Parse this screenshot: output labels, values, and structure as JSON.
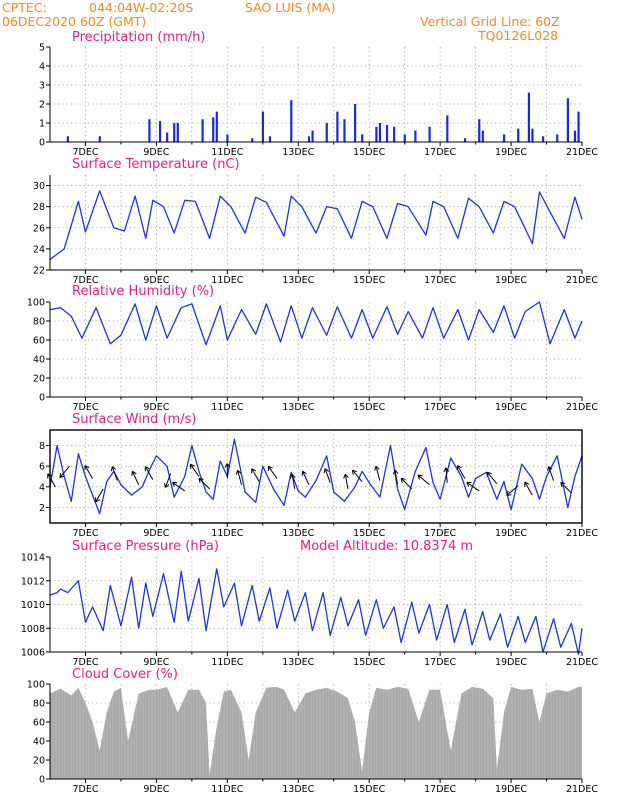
{
  "header": {
    "source": "CPTEC:",
    "location_coords": "044:04W-02:20S",
    "location_name": "SAO LUIS (MA)",
    "datetime": "06DEC2020 60Z (GMT)",
    "grid_line_label": "Vertical Grid Line: 60Z",
    "product_code": "TQ0126L028"
  },
  "colors": {
    "header_text": "#f08a28",
    "panel_title": "#e0208c",
    "series_line": "#2233dd",
    "bars": "#1a2bd6",
    "cloud_fill": "#a8a8a8",
    "grid": "#9a9a9a"
  },
  "x_axis_ticks": [
    "7DEC",
    "9DEC",
    "11DEC",
    "13DEC",
    "15DEC",
    "17DEC",
    "19DEC",
    "21DEC"
  ],
  "chart_data": [
    {
      "id": "precip",
      "type": "bar",
      "title": "Precipitation (mm/h)",
      "ylim": [
        0,
        5
      ],
      "yticks": [
        "0",
        "1",
        "2",
        "3",
        "4",
        "5"
      ],
      "grid": true,
      "x": [
        6.5,
        7.4,
        8.8,
        9.1,
        9.3,
        9.5,
        9.6,
        10.3,
        10.6,
        10.7,
        11.0,
        11.7,
        12.0,
        12.2,
        12.8,
        13.3,
        13.4,
        13.8,
        14.1,
        14.3,
        14.6,
        14.8,
        15.2,
        15.3,
        15.5,
        15.7,
        16.0,
        16.3,
        16.7,
        17.2,
        17.7,
        18.1,
        18.2,
        18.8,
        19.2,
        19.5,
        19.6,
        19.9,
        20.3,
        20.6,
        20.8,
        20.9
      ],
      "values": [
        0.3,
        0.3,
        1.2,
        1.1,
        0.5,
        1.0,
        1.0,
        1.2,
        1.3,
        1.6,
        0.4,
        0.2,
        1.6,
        0.3,
        2.2,
        0.3,
        0.6,
        1.0,
        1.6,
        1.2,
        2.0,
        0.4,
        0.8,
        1.0,
        0.9,
        0.8,
        0.4,
        0.6,
        0.8,
        1.4,
        0.2,
        1.2,
        0.6,
        0.4,
        0.7,
        2.6,
        0.7,
        0.3,
        0.4,
        2.3,
        0.6,
        1.6
      ]
    },
    {
      "id": "temp",
      "type": "line",
      "title": "Surface Temperature (nC)",
      "ylim": [
        22,
        31
      ],
      "yticks": [
        "22",
        "24",
        "26",
        "28",
        "30"
      ],
      "grid": true,
      "x": [
        6.0,
        6.4,
        6.8,
        7.0,
        7.4,
        7.8,
        8.1,
        8.4,
        8.7,
        8.9,
        9.2,
        9.5,
        9.8,
        10.1,
        10.5,
        10.8,
        11.1,
        11.5,
        11.8,
        12.1,
        12.6,
        12.8,
        13.1,
        13.5,
        13.8,
        14.1,
        14.5,
        14.8,
        15.1,
        15.5,
        15.8,
        16.1,
        16.6,
        16.8,
        17.1,
        17.5,
        17.8,
        18.1,
        18.5,
        18.8,
        19.1,
        19.6,
        19.8,
        20.1,
        20.5,
        20.8,
        21.0
      ],
      "values": [
        23.0,
        24.0,
        28.5,
        25.6,
        29.5,
        26.0,
        25.7,
        29.0,
        25.0,
        28.6,
        28.0,
        25.5,
        28.6,
        28.5,
        25.0,
        29.0,
        28.0,
        25.5,
        28.9,
        28.4,
        25.2,
        29.0,
        28.0,
        25.5,
        28.0,
        27.8,
        25.0,
        28.5,
        28.0,
        25.0,
        28.3,
        28.0,
        25.3,
        28.5,
        28.0,
        25.0,
        28.8,
        28.0,
        25.5,
        28.5,
        28.0,
        24.5,
        29.4,
        27.5,
        25.0,
        28.9,
        26.8
      ]
    },
    {
      "id": "rh",
      "type": "line",
      "title": "Relative Humidity (%)",
      "ylim": [
        0,
        100
      ],
      "yticks": [
        "0",
        "20",
        "40",
        "60",
        "80",
        "100"
      ],
      "grid": true,
      "x": [
        6.0,
        6.3,
        6.6,
        6.9,
        7.3,
        7.7,
        8.0,
        8.4,
        8.7,
        9.0,
        9.3,
        9.7,
        10.0,
        10.4,
        10.8,
        11.0,
        11.4,
        11.8,
        12.1,
        12.5,
        12.8,
        13.1,
        13.4,
        13.8,
        14.1,
        14.5,
        14.8,
        15.1,
        15.5,
        15.8,
        16.1,
        16.5,
        16.8,
        17.1,
        17.5,
        17.8,
        18.1,
        18.5,
        18.8,
        19.1,
        19.4,
        19.8,
        20.1,
        20.5,
        20.8,
        21.0
      ],
      "values": [
        92,
        94,
        85,
        62,
        94,
        56,
        65,
        98,
        60,
        96,
        62,
        94,
        98,
        55,
        96,
        60,
        92,
        66,
        98,
        58,
        96,
        62,
        94,
        65,
        95,
        62,
        92,
        62,
        95,
        66,
        90,
        62,
        94,
        62,
        92,
        60,
        92,
        68,
        96,
        62,
        90,
        100,
        56,
        92,
        62,
        80
      ]
    },
    {
      "id": "wind",
      "type": "line",
      "title": "Surface Wind (m/s)",
      "ylim": [
        0.5,
        9.5
      ],
      "yticks": [
        "2",
        "4",
        "6",
        "8"
      ],
      "grid": true,
      "x": [
        6.0,
        6.2,
        6.4,
        6.6,
        6.8,
        7.0,
        7.2,
        7.4,
        7.6,
        7.8,
        8.0,
        8.3,
        8.6,
        8.8,
        9.0,
        9.3,
        9.5,
        9.8,
        10.0,
        10.2,
        10.4,
        10.6,
        10.8,
        11.0,
        11.2,
        11.5,
        11.8,
        12.0,
        12.3,
        12.6,
        12.8,
        13.0,
        13.2,
        13.5,
        13.8,
        14.0,
        14.3,
        14.6,
        14.8,
        15.0,
        15.3,
        15.6,
        15.8,
        16.0,
        16.3,
        16.6,
        16.8,
        17.0,
        17.3,
        17.6,
        17.8,
        18.0,
        18.3,
        18.6,
        18.8,
        19.0,
        19.3,
        19.6,
        19.8,
        20.0,
        20.3,
        20.6,
        20.8,
        21.0
      ],
      "values": [
        4.0,
        8.0,
        5.0,
        2.6,
        7.2,
        5.0,
        3.2,
        1.4,
        4.5,
        5.5,
        4.2,
        3.2,
        4.0,
        5.6,
        7.0,
        6.0,
        3.0,
        5.0,
        8.0,
        5.5,
        3.5,
        2.8,
        6.5,
        5.0,
        8.6,
        3.5,
        2.5,
        6.0,
        3.8,
        2.2,
        5.4,
        3.6,
        3.0,
        4.6,
        7.0,
        3.5,
        2.6,
        4.0,
        5.5,
        4.4,
        3.0,
        8.0,
        3.8,
        1.8,
        5.5,
        7.8,
        4.4,
        2.8,
        6.8,
        5.0,
        3.0,
        4.8,
        5.4,
        2.8,
        4.5,
        1.8,
        6.2,
        4.8,
        2.8,
        5.0,
        7.0,
        2.0,
        5.0,
        7.0
      ],
      "arrows": [
        {
          "x": 6.15,
          "v": 4.0,
          "dir": 60
        },
        {
          "x": 6.55,
          "v": 6.0,
          "dir": 310
        },
        {
          "x": 7.2,
          "v": 4.8,
          "dir": 60
        },
        {
          "x": 7.5,
          "v": 3.8,
          "dir": 300
        },
        {
          "x": 7.9,
          "v": 4.6,
          "dir": 70
        },
        {
          "x": 8.5,
          "v": 4.2,
          "dir": 65
        },
        {
          "x": 8.9,
          "v": 4.7,
          "dir": 60
        },
        {
          "x": 9.4,
          "v": 5.3,
          "dir": 290
        },
        {
          "x": 9.8,
          "v": 3.6,
          "dir": 35
        },
        {
          "x": 10.2,
          "v": 5.0,
          "dir": 55
        },
        {
          "x": 10.5,
          "v": 3.8,
          "dir": 45
        },
        {
          "x": 11.0,
          "v": 4.8,
          "dir": 90
        },
        {
          "x": 11.4,
          "v": 4.2,
          "dir": 75
        },
        {
          "x": 11.9,
          "v": 4.5,
          "dir": 60
        },
        {
          "x": 12.4,
          "v": 4.8,
          "dir": 55
        },
        {
          "x": 12.9,
          "v": 3.8,
          "dir": 80
        },
        {
          "x": 13.3,
          "v": 4.2,
          "dir": 65
        },
        {
          "x": 13.9,
          "v": 4.4,
          "dir": 70
        },
        {
          "x": 14.4,
          "v": 3.8,
          "dir": 80
        },
        {
          "x": 14.8,
          "v": 4.5,
          "dir": 50
        },
        {
          "x": 15.3,
          "v": 4.6,
          "dir": 75
        },
        {
          "x": 15.8,
          "v": 4.2,
          "dir": 80
        },
        {
          "x": 16.2,
          "v": 3.8,
          "dir": 45
        },
        {
          "x": 16.7,
          "v": 4.2,
          "dir": 40
        },
        {
          "x": 17.2,
          "v": 4.4,
          "dir": 85
        },
        {
          "x": 17.7,
          "v": 4.8,
          "dir": 60
        },
        {
          "x": 18.1,
          "v": 3.6,
          "dir": 35
        },
        {
          "x": 18.6,
          "v": 4.3,
          "dir": 50
        },
        {
          "x": 19.2,
          "v": 4.1,
          "dir": 320
        },
        {
          "x": 19.6,
          "v": 3.2,
          "dir": 60
        },
        {
          "x": 20.2,
          "v": 4.6,
          "dir": 70
        },
        {
          "x": 20.7,
          "v": 3.4,
          "dir": 45
        }
      ]
    },
    {
      "id": "pressure",
      "type": "line",
      "title": "Surface Pressure (hPa)",
      "annotation": "Model Altitude: 10.8374 m",
      "ylim": [
        1006,
        1014
      ],
      "yticks": [
        "1006",
        "1008",
        "1010",
        "1012",
        "1014"
      ],
      "grid": true,
      "x": [
        6.0,
        6.2,
        6.3,
        6.5,
        6.8,
        7.0,
        7.2,
        7.5,
        7.7,
        8.0,
        8.3,
        8.5,
        8.7,
        8.9,
        9.2,
        9.5,
        9.7,
        9.9,
        10.2,
        10.4,
        10.7,
        10.9,
        11.2,
        11.4,
        11.7,
        11.9,
        12.2,
        12.4,
        12.7,
        12.9,
        13.2,
        13.4,
        13.7,
        13.9,
        14.2,
        14.4,
        14.7,
        14.9,
        15.2,
        15.4,
        15.7,
        15.9,
        16.2,
        16.4,
        16.7,
        16.9,
        17.2,
        17.4,
        17.7,
        17.9,
        18.2,
        18.4,
        18.7,
        18.9,
        19.2,
        19.4,
        19.7,
        19.9,
        20.2,
        20.4,
        20.7,
        20.9,
        21.0
      ],
      "values": [
        1010.8,
        1011.0,
        1011.3,
        1011.0,
        1012.0,
        1008.5,
        1009.8,
        1007.8,
        1011.6,
        1008.2,
        1012.3,
        1008.0,
        1011.8,
        1009.0,
        1012.6,
        1008.5,
        1012.8,
        1008.6,
        1012.2,
        1007.8,
        1013.0,
        1009.8,
        1011.8,
        1008.2,
        1011.6,
        1008.6,
        1011.4,
        1008.0,
        1011.2,
        1008.6,
        1011.0,
        1007.8,
        1011.0,
        1007.4,
        1010.6,
        1008.2,
        1010.4,
        1007.4,
        1010.4,
        1008.0,
        1009.8,
        1006.8,
        1010.2,
        1007.6,
        1010.0,
        1007.0,
        1010.0,
        1006.8,
        1009.6,
        1006.6,
        1009.4,
        1007.0,
        1009.2,
        1006.4,
        1009.0,
        1006.8,
        1009.0,
        1006.0,
        1008.8,
        1006.4,
        1008.4,
        1005.8,
        1008.0
      ]
    },
    {
      "id": "cloud",
      "type": "area",
      "title": "Cloud Cover (%)",
      "ylim": [
        0,
        100
      ],
      "yticks": [
        "0",
        "20",
        "40",
        "60",
        "80",
        "100"
      ],
      "grid": true,
      "x": [
        6.0,
        6.3,
        6.6,
        6.8,
        7.0,
        7.2,
        7.4,
        7.6,
        7.8,
        8.0,
        8.2,
        8.5,
        8.8,
        9.0,
        9.3,
        9.6,
        9.9,
        10.2,
        10.4,
        10.5,
        10.7,
        10.9,
        11.1,
        11.4,
        11.6,
        11.8,
        12.1,
        12.4,
        12.6,
        12.9,
        13.2,
        13.5,
        13.8,
        14.1,
        14.4,
        14.6,
        14.8,
        14.9,
        15.0,
        15.2,
        15.5,
        15.8,
        16.1,
        16.4,
        16.7,
        17.0,
        17.3,
        17.6,
        17.9,
        18.2,
        18.5,
        18.6,
        18.8,
        19.0,
        19.3,
        19.6,
        19.8,
        20.0,
        20.3,
        20.6,
        20.9,
        21.0
      ],
      "values": [
        90,
        95,
        88,
        96,
        80,
        60,
        30,
        70,
        92,
        96,
        40,
        90,
        94,
        94,
        97,
        70,
        94,
        94,
        80,
        5,
        55,
        92,
        94,
        70,
        20,
        70,
        96,
        97,
        94,
        70,
        90,
        94,
        96,
        92,
        85,
        60,
        8,
        40,
        70,
        96,
        94,
        97,
        95,
        60,
        94,
        94,
        30,
        90,
        97,
        95,
        85,
        10,
        70,
        97,
        94,
        95,
        60,
        90,
        94,
        92,
        97,
        97
      ]
    }
  ]
}
